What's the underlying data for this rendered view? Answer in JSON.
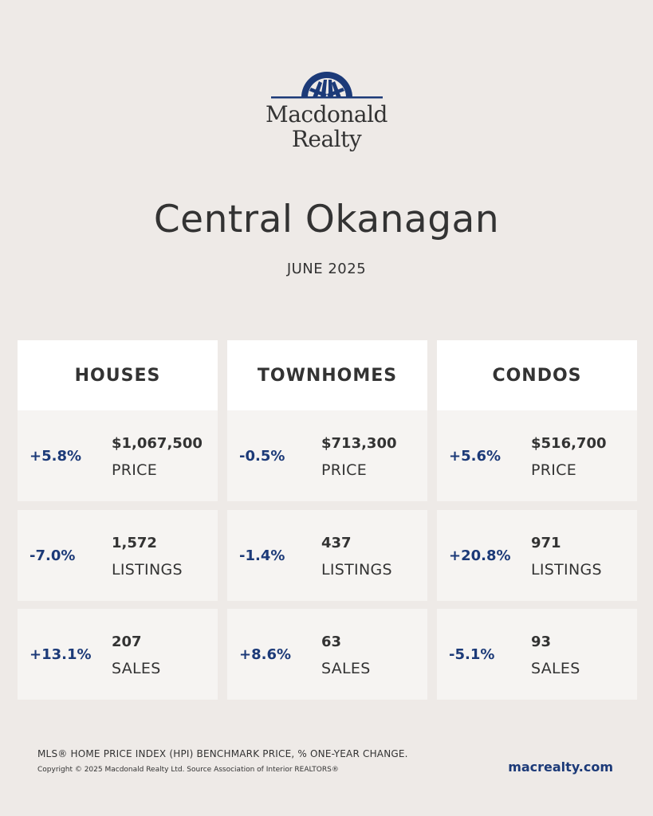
{
  "brand": {
    "name_line1": "Macdonald",
    "name_line2": "Realty",
    "mark_color": "#1C3A78",
    "logo_icon": "sunburst-logo-icon"
  },
  "page": {
    "title": "Central Okanagan",
    "period": "JUNE 2025"
  },
  "columns": [
    {
      "header": "HOUSES",
      "rows": [
        {
          "change": "+5.8%",
          "value": "$1,067,500",
          "label": "PRICE"
        },
        {
          "change": "-7.0%",
          "value": "1,572",
          "label": "LISTINGS"
        },
        {
          "change": "+13.1%",
          "value": "207",
          "label": "SALES"
        }
      ]
    },
    {
      "header": "TOWNHOMES",
      "rows": [
        {
          "change": "-0.5%",
          "value": "$713,300",
          "label": "PRICE"
        },
        {
          "change": "-1.4%",
          "value": "437",
          "label": "LISTINGS"
        },
        {
          "change": "+8.6%",
          "value": "63",
          "label": "SALES"
        }
      ]
    },
    {
      "header": "CONDOS",
      "rows": [
        {
          "change": "+5.6%",
          "value": "$516,700",
          "label": "PRICE"
        },
        {
          "change": "+20.8%",
          "value": "971",
          "label": "LISTINGS"
        },
        {
          "change": "-5.1%",
          "value": "93",
          "label": "SALES"
        }
      ]
    }
  ],
  "footer": {
    "note": "MLS® HOME PRICE INDEX (HPI) BENCHMARK PRICE, % ONE-YEAR CHANGE.",
    "copyright": "Copyright © 2025 Macdonald Realty Ltd. Source Association of Interior REALTORS®",
    "website": "macrealty.com"
  },
  "colors": {
    "background": "#EEEAE7",
    "header_bg": "#FFFFFF",
    "cell_bg": "#F6F4F2",
    "accent": "#1C3A78",
    "text": "#333333"
  }
}
